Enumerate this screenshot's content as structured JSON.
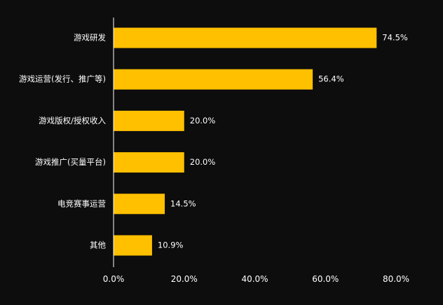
{
  "chart_data": {
    "type": "bar",
    "orientation": "horizontal",
    "categories": [
      "游戏研发",
      "游戏运营(发行、推广等)",
      "游戏版权/授权收入",
      "游戏推广(买量平台)",
      "电竞赛事运营",
      "其他"
    ],
    "values": [
      74.5,
      56.4,
      20.0,
      20.0,
      14.5,
      10.9
    ],
    "value_labels": [
      "74.5%",
      "56.4%",
      "20.0%",
      "20.0%",
      "14.5%",
      "10.9%"
    ],
    "xlim": [
      0,
      80
    ],
    "xticks": [
      0,
      20,
      40,
      60,
      80
    ],
    "xtick_labels": [
      "0.0%",
      "20.0%",
      "40.0%",
      "60.0%",
      "80.0%"
    ],
    "title": "",
    "xlabel": "",
    "ylabel": "",
    "grid": false,
    "bar_color": "#ffc000",
    "background": "#0d0d0d",
    "text_color": "#ffffff"
  }
}
